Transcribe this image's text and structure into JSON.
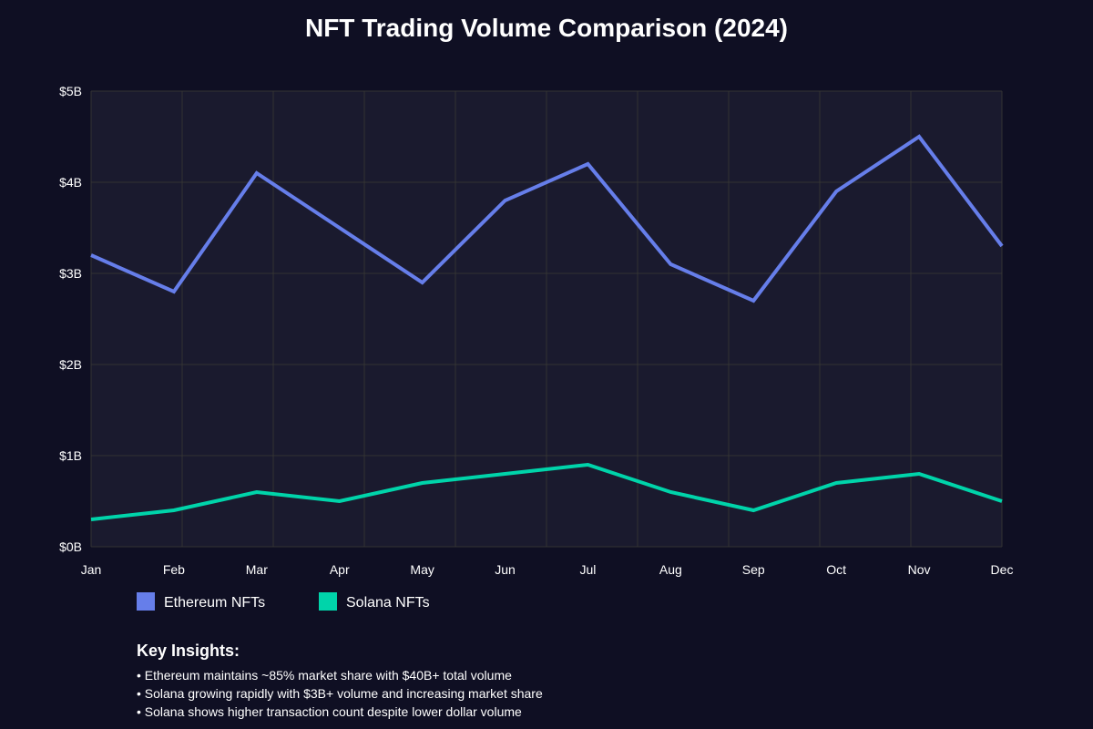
{
  "chart_data": {
    "type": "line",
    "title": "NFT Trading Volume Comparison (2024)",
    "xlabel": "",
    "ylabel": "",
    "categories": [
      "Jan",
      "Feb",
      "Mar",
      "Apr",
      "May",
      "Jun",
      "Jul",
      "Aug",
      "Sep",
      "Oct",
      "Nov",
      "Dec"
    ],
    "y_ticks": [
      {
        "value": 0,
        "label": "$0B"
      },
      {
        "value": 1,
        "label": "$1B"
      },
      {
        "value": 2,
        "label": "$2B"
      },
      {
        "value": 3,
        "label": "$3B"
      },
      {
        "value": 4,
        "label": "$4B"
      },
      {
        "value": 5,
        "label": "$5B"
      }
    ],
    "ylim": [
      0,
      5
    ],
    "unit": "billion USD",
    "grid": true,
    "legend_position": "bottom-left",
    "series": [
      {
        "name": "Ethereum NFTs",
        "color": "#667eea",
        "values": [
          3.2,
          2.8,
          4.1,
          3.5,
          2.9,
          3.8,
          4.2,
          3.1,
          2.7,
          3.9,
          4.5,
          3.3
        ]
      },
      {
        "name": "Solana NFTs",
        "color": "#00d4aa",
        "values": [
          0.3,
          0.4,
          0.6,
          0.5,
          0.7,
          0.8,
          0.9,
          0.6,
          0.4,
          0.7,
          0.8,
          0.5
        ]
      }
    ]
  },
  "insights": {
    "title": "Key Insights:",
    "items": [
      "• Ethereum maintains ~85% market share with $40B+ total volume",
      "• Solana growing rapidly with $3B+ volume and increasing market share",
      "• Solana shows higher transaction count despite lower dollar volume"
    ]
  },
  "colors": {
    "background": "#0f0f23",
    "plot_background": "#1a1a2e",
    "grid": "#333333",
    "text": "#ffffff"
  }
}
